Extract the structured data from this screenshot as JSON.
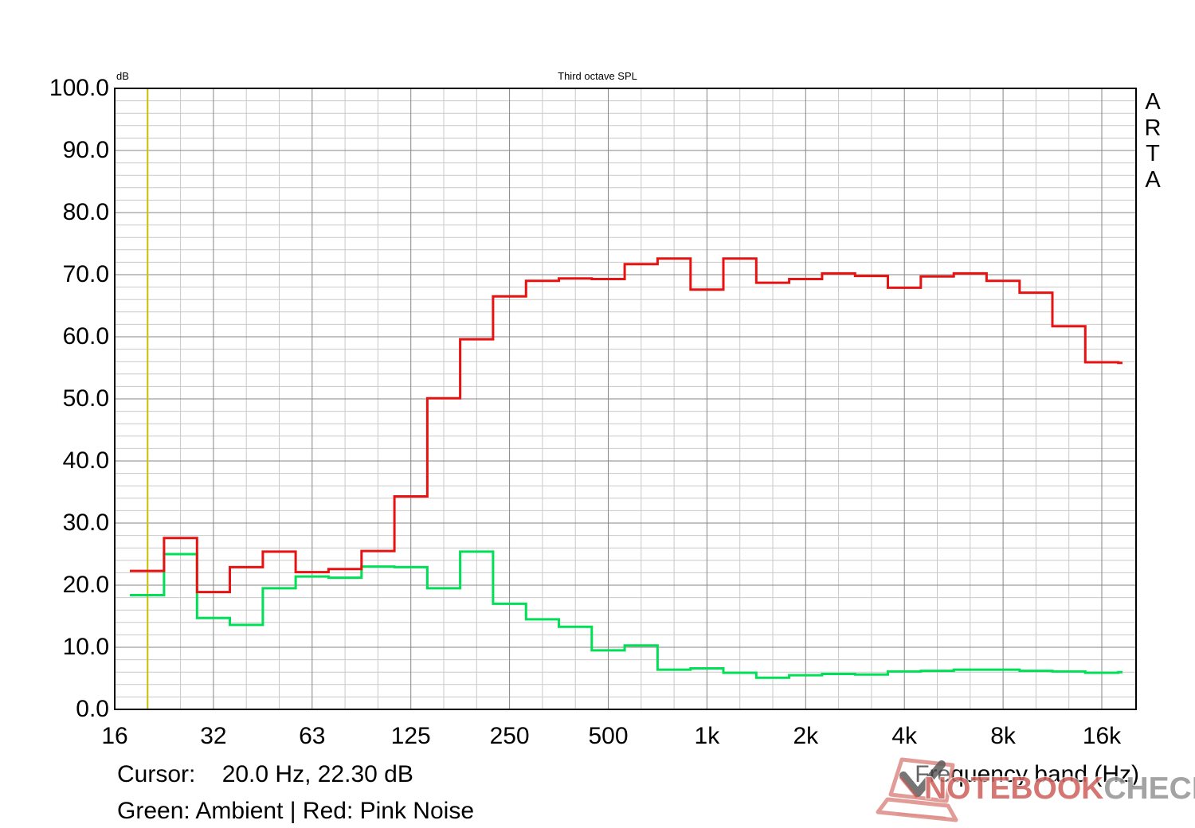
{
  "title": "Third octave SPL",
  "y_axis_unit": "dB",
  "brand": "ARTA",
  "x_axis_title": "Frequency band (Hz)",
  "footer": {
    "cursor_line": "Cursor:    20.0 Hz, 22.30 dB",
    "legend_line": "Green: Ambient | Red: Pink Noise"
  },
  "watermark": {
    "part1": "NOTEBOOK",
    "part2": "CHECK"
  },
  "chart_data": {
    "type": "line",
    "style": "third-octave-step",
    "title": "Third octave SPL",
    "xlabel": "Frequency band (Hz)",
    "ylabel": "dB",
    "ylim": [
      0,
      100
    ],
    "grid": "on",
    "y_major_ticks": [
      "100.0",
      "90.0",
      "80.0",
      "70.0",
      "60.0",
      "50.0",
      "40.0",
      "30.0",
      "20.0",
      "10.0",
      "0.0"
    ],
    "x_major_ticks": [
      "16",
      "32",
      "63",
      "125",
      "250",
      "500",
      "1k",
      "2k",
      "4k",
      "8k",
      "16k"
    ],
    "categories": [
      "20",
      "25",
      "31.5",
      "40",
      "50",
      "63",
      "80",
      "100",
      "125",
      "160",
      "200",
      "250",
      "315",
      "400",
      "500",
      "630",
      "800",
      "1k",
      "1.25k",
      "1.6k",
      "2k",
      "2.5k",
      "3.15k",
      "4k",
      "5k",
      "6.3k",
      "8k",
      "10k",
      "12.5k",
      "16k",
      "20k"
    ],
    "series": [
      {
        "name": "Ambient",
        "color": "#00df55",
        "values": [
          18.4,
          25.0,
          14.7,
          13.6,
          19.5,
          21.4,
          21.2,
          23.0,
          22.9,
          19.5,
          25.4,
          17.0,
          14.5,
          13.3,
          9.5,
          10.3,
          6.4,
          6.6,
          5.9,
          5.1,
          5.5,
          5.7,
          5.6,
          6.1,
          6.2,
          6.4,
          6.4,
          6.2,
          6.1,
          5.9,
          6.0
        ]
      },
      {
        "name": "Pink Noise",
        "color": "#e81212",
        "values": [
          22.3,
          27.6,
          18.9,
          22.9,
          25.4,
          22.1,
          22.6,
          25.5,
          34.3,
          50.1,
          59.6,
          66.5,
          69.0,
          69.4,
          69.3,
          71.7,
          72.6,
          67.6,
          72.6,
          68.7,
          69.3,
          70.2,
          69.8,
          67.9,
          69.7,
          70.2,
          69.0,
          67.1,
          61.7,
          55.9,
          55.8
        ]
      }
    ],
    "cursor": {
      "frequency": "20.0 Hz",
      "level": "22.30 dB",
      "band_index": 1,
      "color": "#c6c000"
    },
    "grid_colors": {
      "minor": "#c9c9c9",
      "major": "#858585",
      "frame": "#000000"
    }
  }
}
